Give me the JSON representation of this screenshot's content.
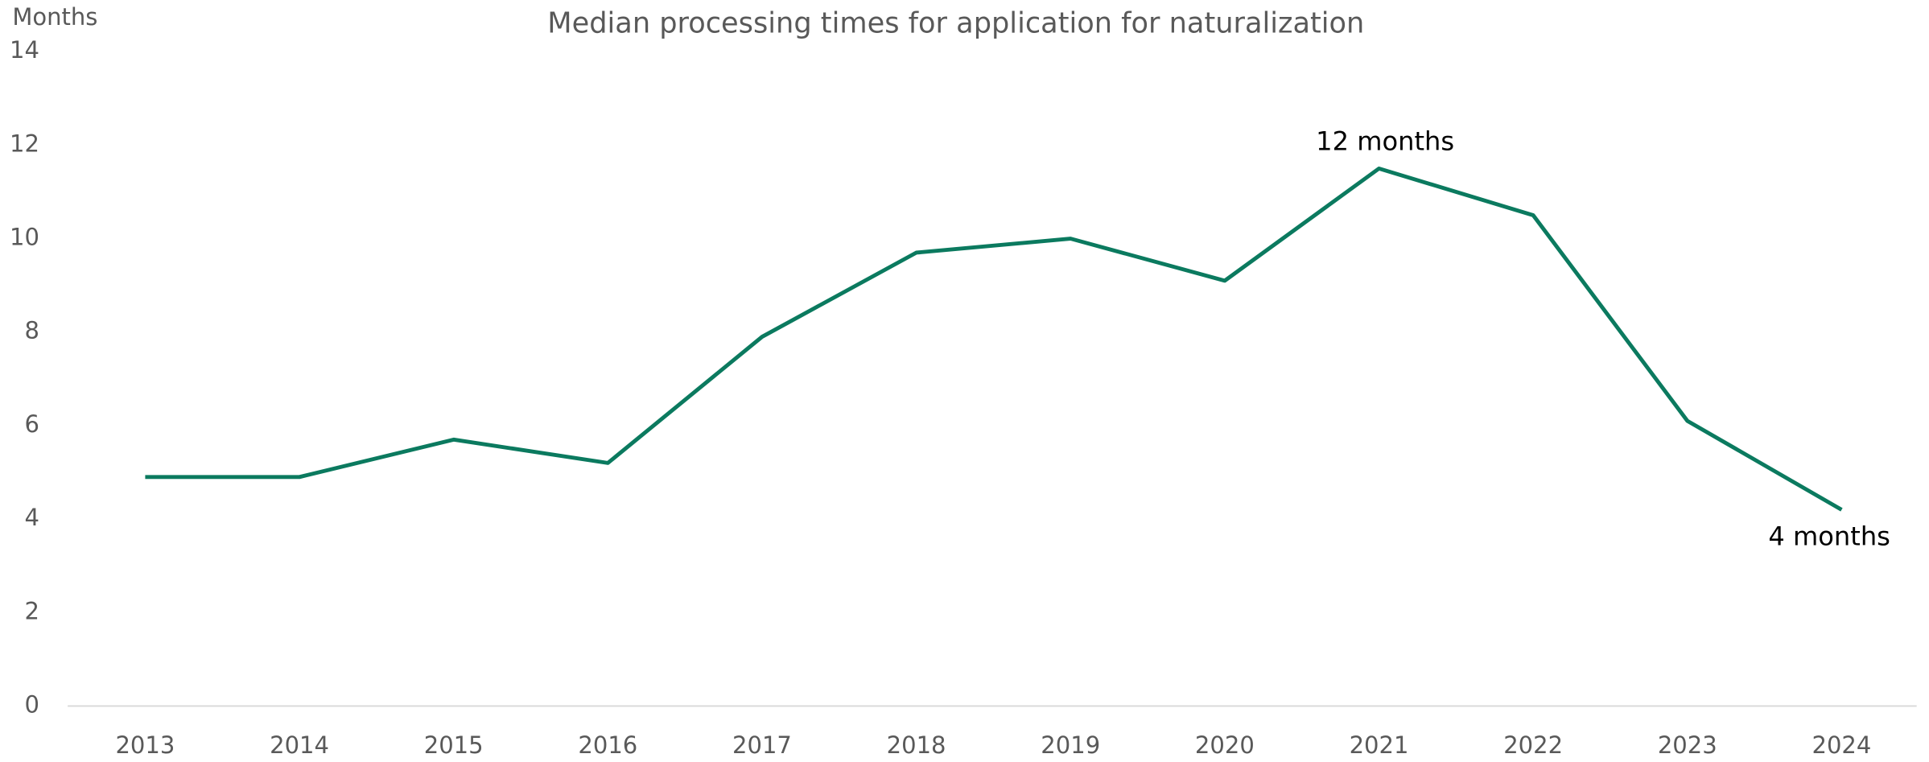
{
  "chart_data": {
    "type": "line",
    "title": "Median processing times for application for naturalization",
    "y_label": "Months",
    "categories": [
      "2013",
      "2014",
      "2015",
      "2016",
      "2017",
      "2018",
      "2019",
      "2020",
      "2021",
      "2022",
      "2023",
      "2024"
    ],
    "series": [
      {
        "name": "Median processing time",
        "color": "#0b7a5f",
        "values": [
          4.9,
          4.9,
          5.7,
          5.2,
          7.9,
          9.7,
          10.0,
          9.1,
          11.5,
          10.5,
          6.1,
          4.2
        ]
      }
    ],
    "ylim": [
      0,
      14
    ],
    "yticks": [
      0,
      2,
      4,
      6,
      8,
      10,
      12,
      14
    ],
    "grid": false,
    "legend": false,
    "annotations": [
      {
        "text": "12 months",
        "x": "2021",
        "position": "above"
      },
      {
        "text": "4 months",
        "x": "2024",
        "position": "below"
      }
    ]
  }
}
